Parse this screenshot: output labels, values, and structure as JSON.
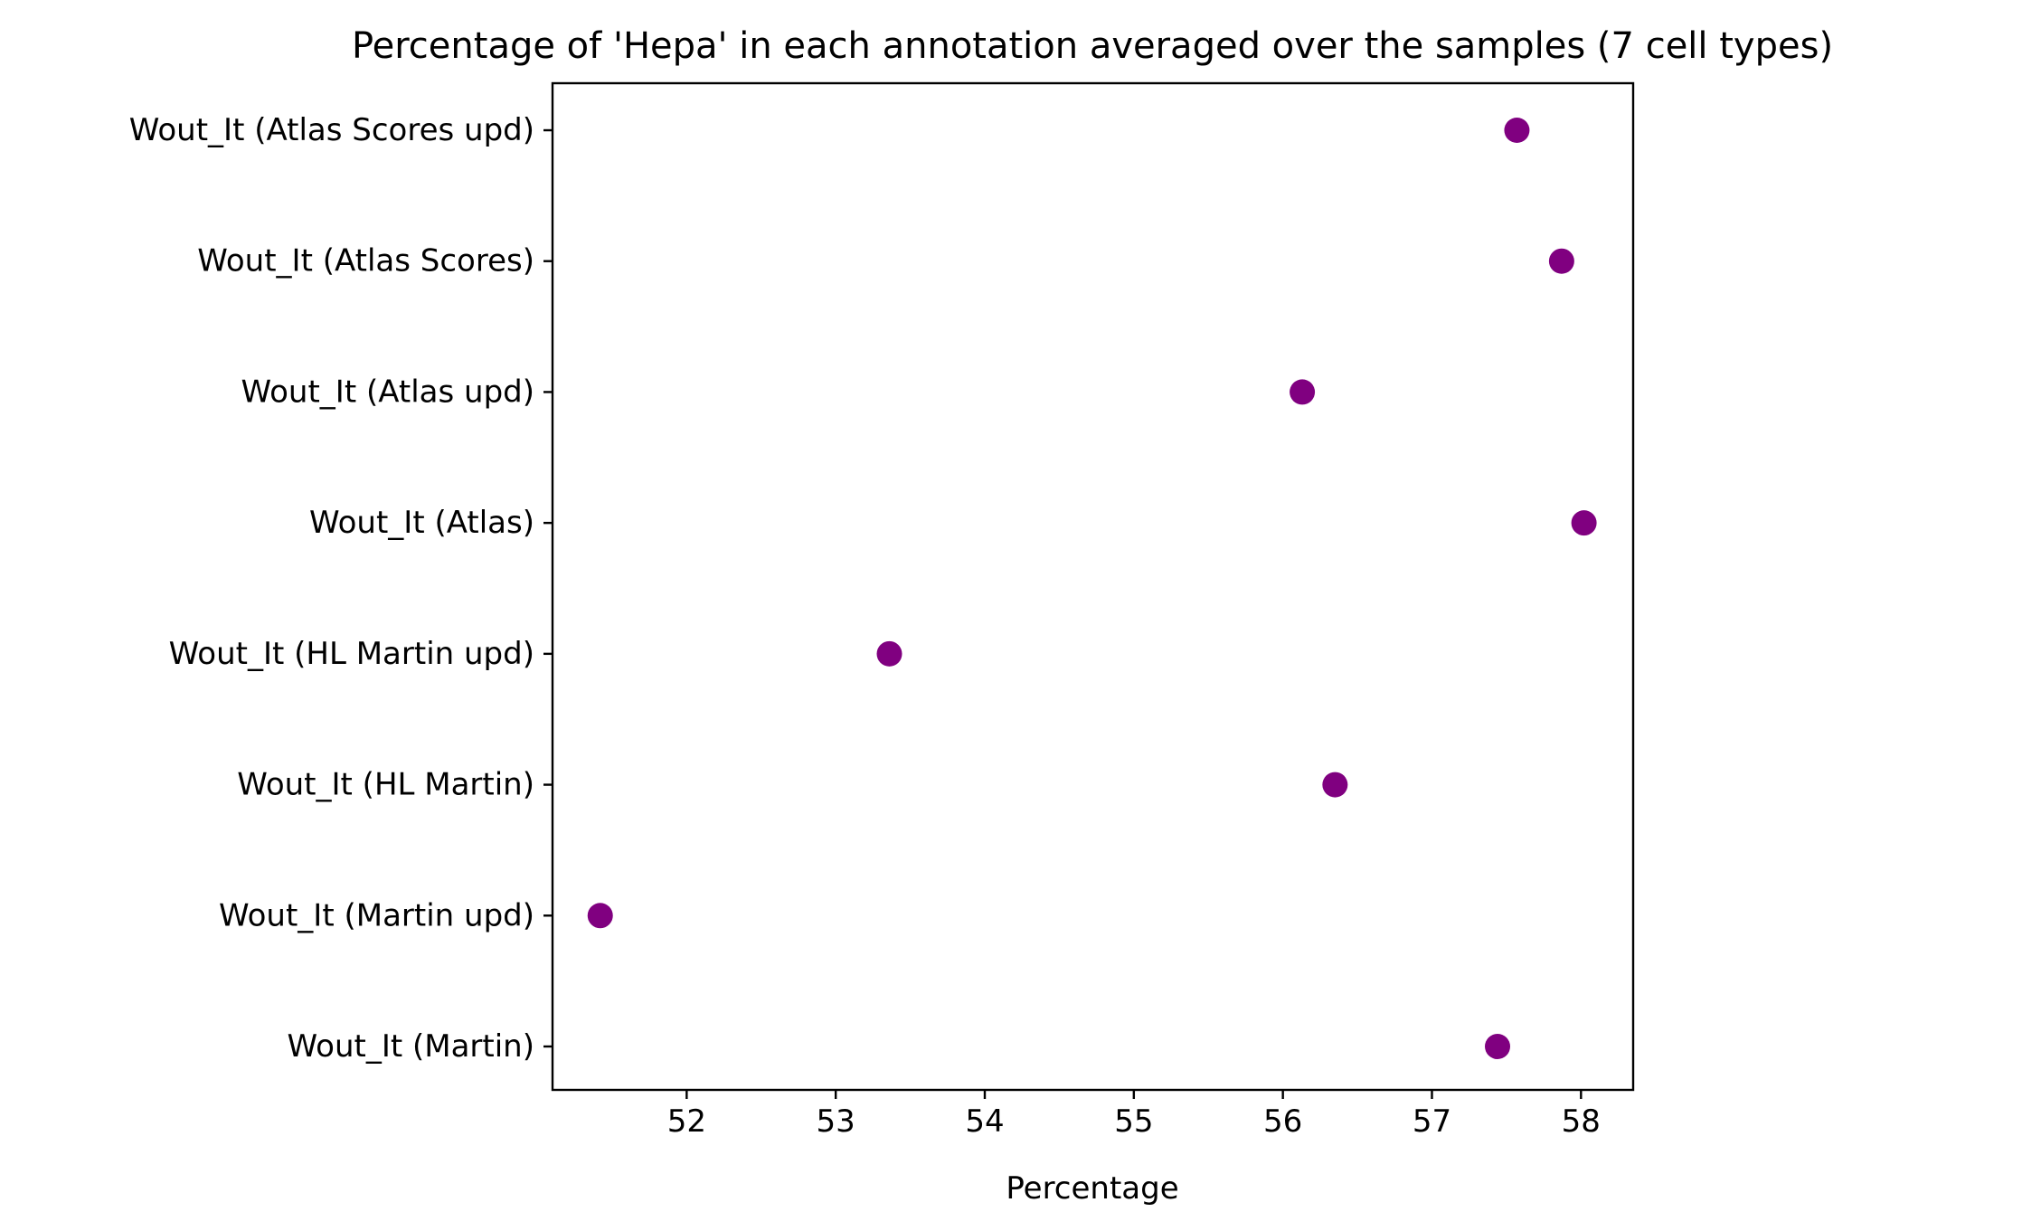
{
  "chart_data": {
    "type": "scatter",
    "title": "Percentage of 'Hepa' in each annotation averaged over the samples (7 cell types)",
    "xlabel": "Percentage",
    "ylabel": "",
    "xlim": [
      51.1,
      58.35
    ],
    "xticks": [
      52,
      53,
      54,
      55,
      56,
      57,
      58
    ],
    "grid": false,
    "categories": [
      "Wout_It (Atlas Scores upd)",
      "Wout_It (Atlas Scores)",
      "Wout_It (Atlas upd)",
      "Wout_It (Atlas)",
      "Wout_It (HL Martin upd)",
      "Wout_It (HL Martin)",
      "Wout_It (Martin upd)",
      "Wout_It (Martin)"
    ],
    "values": [
      57.57,
      57.87,
      56.13,
      58.02,
      53.36,
      56.35,
      51.42,
      57.44
    ],
    "marker_color": "#800080"
  }
}
